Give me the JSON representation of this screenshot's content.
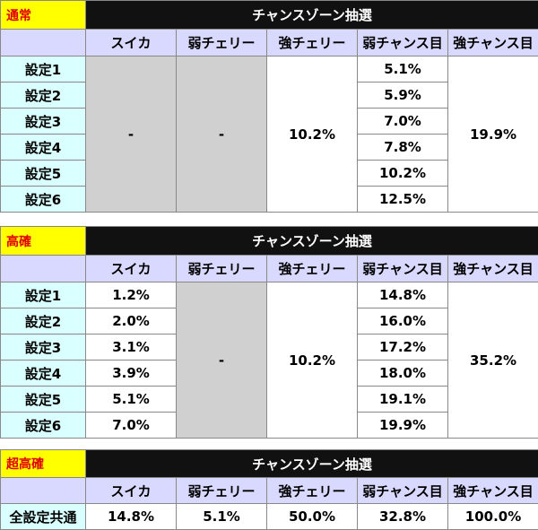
{
  "column_headers": [
    "スイカ",
    "弱チェリー",
    "強チェリー",
    "弱チャンス目",
    "強チャンス目"
  ],
  "lottery_title": "チャンスゾーン抽選",
  "tables": [
    {
      "mode": "通常",
      "rows": [
        "設定1",
        "設定2",
        "設定3",
        "設定4",
        "設定5",
        "設定6"
      ],
      "suika": "-",
      "weak_cherry": "-",
      "strong_cherry": "10.2%",
      "weak_chance": [
        "5.1%",
        "5.9%",
        "7.0%",
        "7.8%",
        "10.2%",
        "12.5%"
      ],
      "strong_chance": "19.9%"
    },
    {
      "mode": "高確",
      "rows": [
        "設定1",
        "設定2",
        "設定3",
        "設定4",
        "設定5",
        "設定6"
      ],
      "suika": [
        "1.2%",
        "2.0%",
        "3.1%",
        "3.9%",
        "5.1%",
        "7.0%"
      ],
      "weak_cherry": "-",
      "strong_cherry": "10.2%",
      "weak_chance": [
        "14.8%",
        "16.0%",
        "17.2%",
        "18.0%",
        "19.1%",
        "19.9%"
      ],
      "strong_chance": "35.2%"
    },
    {
      "mode": "超高確",
      "row": "全設定共通",
      "values": [
        "14.8%",
        "5.1%",
        "50.0%",
        "32.8%",
        "100.0%"
      ]
    }
  ],
  "colors": {
    "mode_bg": "#ffff00",
    "mode_text": "#e00000",
    "title_bg": "#111111",
    "header_bg": "#d9d9ff",
    "row_label_bg": "#d9ffff",
    "gray_cell": "#d0d0d0"
  }
}
